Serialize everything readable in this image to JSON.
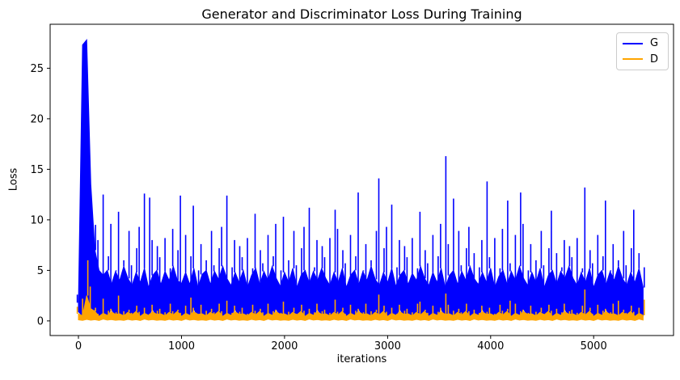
{
  "figure": {
    "background": "#ffffff",
    "text_color": "#000000"
  },
  "chart_data": {
    "type": "line",
    "title": "Generator and Discriminator Loss During Training",
    "xlabel": "iterations",
    "ylabel": "Loss",
    "xlim": [
      -275,
      5775
    ],
    "ylim": [
      -1.45,
      29.35
    ],
    "xticks": [
      0,
      1000,
      2000,
      3000,
      4000,
      5000
    ],
    "yticks": [
      0,
      5,
      10,
      15,
      20,
      25
    ],
    "grid": false,
    "legend": {
      "position": "upper right",
      "entries": [
        {
          "label": "G",
          "color": "#0000ff"
        },
        {
          "label": "D",
          "color": "#ffa500"
        }
      ]
    },
    "representation": "noisy per-iteration loss downsampled to 40-iteration bins; each bin stores spike top (max), top of dense band (body) and minimum (min)",
    "x_start": 0,
    "x_step": 40,
    "x_end": 5480,
    "series": [
      {
        "name": "G",
        "color": "#0000ff",
        "max": [
          2.6,
          27.3,
          27.8,
          14.0,
          9.5,
          8.0,
          12.5,
          6.4,
          9.6,
          5.0,
          10.8,
          6.0,
          8.9,
          5.5,
          7.2,
          9.3,
          12.6,
          12.2,
          8.0,
          7.4,
          6.3,
          8.2,
          5.2,
          9.1,
          7.0,
          12.4,
          8.5,
          6.4,
          11.4,
          5.0,
          7.6,
          6.0,
          8.9,
          5.5,
          7.2,
          9.3,
          12.4,
          5.3,
          8.0,
          7.4,
          6.3,
          8.2,
          5.2,
          10.6,
          7.0,
          5.7,
          8.5,
          6.4,
          9.6,
          5.0,
          10.3,
          6.0,
          8.9,
          5.5,
          7.2,
          9.3,
          11.2,
          5.3,
          8.0,
          7.4,
          6.3,
          8.2,
          11.0,
          9.1,
          7.0,
          5.7,
          8.5,
          6.4,
          12.7,
          5.0,
          7.6,
          6.0,
          8.9,
          14.1,
          7.2,
          9.3,
          11.5,
          5.3,
          8.0,
          7.4,
          6.3,
          8.2,
          5.2,
          10.8,
          7.0,
          5.7,
          8.5,
          6.4,
          9.6,
          16.3,
          7.6,
          12.1,
          8.9,
          5.5,
          7.2,
          9.3,
          6.7,
          5.3,
          8.0,
          13.8,
          6.3,
          8.2,
          5.2,
          9.1,
          11.9,
          5.7,
          8.5,
          12.7,
          9.6,
          5.0,
          7.6,
          6.0,
          8.9,
          5.5,
          7.2,
          10.9,
          6.7,
          5.3,
          8.0,
          7.4,
          6.3,
          8.2,
          5.2,
          13.2,
          7.0,
          5.7,
          8.5,
          6.4,
          11.9,
          5.0,
          7.6,
          6.0,
          8.9,
          5.5,
          7.2,
          11.0,
          6.7,
          5.3
        ],
        "body": [
          1.8,
          27.3,
          27.8,
          13.5,
          7.0,
          5.0,
          4.5,
          5.0,
          3.6,
          4.9,
          4.0,
          5.4,
          4.2,
          3.5,
          4.8,
          3.8,
          5.2,
          3.3,
          4.5,
          5.0,
          3.6,
          4.9,
          4.0,
          5.4,
          4.0,
          3.7,
          4.8,
          3.6,
          5.2,
          3.3,
          4.6,
          5.0,
          3.6,
          4.9,
          4.1,
          5.4,
          4.2,
          3.5,
          4.8,
          3.8,
          5.0,
          3.3,
          4.5,
          5.2,
          3.6,
          4.9,
          4.0,
          5.4,
          4.2,
          3.4,
          4.8,
          3.8,
          5.2,
          3.3,
          4.5,
          5.0,
          3.7,
          4.9,
          4.0,
          5.2,
          4.2,
          3.5,
          4.8,
          3.8,
          5.2,
          3.3,
          4.5,
          5.0,
          3.6,
          4.9,
          4.0,
          5.4,
          4.1,
          3.5,
          4.8,
          3.8,
          5.2,
          3.4,
          4.5,
          5.0,
          3.6,
          4.7,
          4.0,
          5.4,
          4.2,
          3.5,
          4.8,
          3.8,
          5.2,
          3.3,
          4.5,
          5.0,
          3.6,
          4.9,
          4.0,
          5.4,
          4.2,
          3.6,
          4.8,
          3.8,
          5.2,
          3.3,
          4.4,
          5.0,
          3.6,
          4.9,
          4.0,
          5.4,
          4.2,
          3.5,
          4.8,
          3.8,
          5.2,
          3.3,
          4.5,
          5.0,
          3.6,
          4.9,
          4.2,
          5.4,
          4.2,
          3.5,
          4.8,
          3.8,
          5.2,
          3.3,
          4.5,
          5.0,
          3.6,
          4.9,
          4.0,
          5.4,
          4.2,
          3.5,
          4.8,
          3.8,
          5.2,
          3.3
        ],
        "min": [
          0.9,
          0.5,
          1.5,
          1.0,
          1.1,
          0.2,
          0.8,
          0.5,
          1.2,
          0.35,
          0.6,
          0.3,
          0.9,
          0.4,
          1.1,
          0.2,
          0.8,
          0.5,
          1.2,
          0.35,
          0.6,
          0.3,
          0.9,
          0.4,
          1.1,
          0.2,
          0.8,
          0.5,
          1.2,
          0.35,
          0.6,
          0.3,
          0.9,
          0.4,
          1.1,
          0.2,
          0.8,
          0.5,
          1.2,
          0.35,
          0.6,
          0.3,
          0.9,
          0.4,
          1.1,
          0.2,
          0.8,
          0.5,
          1.2,
          0.35,
          0.6,
          0.3,
          0.9,
          0.4,
          1.1,
          0.2,
          0.8,
          0.5,
          1.2,
          0.35,
          0.6,
          0.3,
          0.9,
          0.4,
          1.1,
          0.2,
          0.8,
          0.5,
          1.2,
          0.35,
          0.6,
          0.3,
          0.9,
          0.4,
          1.1,
          0.2,
          0.8,
          0.5,
          1.2,
          0.35,
          0.6,
          0.3,
          0.9,
          0.4,
          1.1,
          0.2,
          0.8,
          0.5,
          1.2,
          0.35,
          0.6,
          0.3,
          0.9,
          0.4,
          1.1,
          0.2,
          0.8,
          0.5,
          1.2,
          0.35,
          0.6,
          0.3,
          0.9,
          0.4,
          1.1,
          0.2,
          0.8,
          0.5,
          1.2,
          0.35,
          0.6,
          0.3,
          0.9,
          0.4,
          1.1,
          0.2,
          0.8,
          0.5,
          1.2,
          0.35,
          0.6,
          0.3,
          0.9,
          0.4,
          1.1,
          0.2,
          0.8,
          0.5,
          1.2,
          0.35,
          0.6,
          0.3,
          0.9,
          0.4,
          1.1,
          0.2,
          0.8,
          0.5
        ],
        "notable_peaks": [
          [
            60,
            27.8
          ],
          [
            125,
            14.0
          ],
          [
            240,
            12.5
          ],
          [
            640,
            12.6
          ],
          [
            1000,
            12.4
          ],
          [
            1440,
            12.4
          ],
          [
            2240,
            11.2
          ],
          [
            2720,
            12.7
          ],
          [
            2920,
            14.1
          ],
          [
            3560,
            16.3
          ],
          [
            3960,
            13.8
          ],
          [
            4280,
            12.7
          ],
          [
            4920,
            13.2
          ],
          [
            5120,
            11.9
          ],
          [
            5400,
            11.0
          ]
        ]
      },
      {
        "name": "D",
        "color": "#ffa500",
        "max": [
          1.4,
          2.2,
          6.0,
          3.4,
          1.3,
          0.7,
          2.2,
          1.0,
          1.2,
          0.85,
          2.5,
          0.95,
          1.1,
          0.8,
          1.5,
          0.9,
          1.3,
          0.7,
          1.6,
          1.0,
          1.2,
          0.85,
          1.7,
          0.95,
          1.1,
          0.8,
          1.5,
          2.3,
          1.3,
          0.7,
          1.6,
          1.0,
          1.2,
          0.85,
          1.7,
          0.95,
          2.0,
          0.8,
          1.5,
          0.9,
          1.3,
          0.7,
          1.6,
          1.0,
          1.2,
          0.85,
          1.7,
          0.95,
          1.1,
          0.8,
          1.9,
          0.9,
          1.3,
          0.7,
          1.6,
          1.0,
          1.2,
          0.85,
          1.7,
          0.95,
          1.1,
          0.8,
          2.1,
          0.9,
          1.3,
          0.7,
          1.6,
          1.0,
          1.2,
          0.85,
          1.7,
          0.95,
          1.1,
          2.6,
          1.5,
          0.9,
          1.3,
          0.7,
          1.6,
          1.0,
          1.2,
          0.85,
          1.7,
          1.9,
          1.1,
          0.8,
          1.5,
          0.9,
          1.3,
          2.7,
          1.6,
          1.0,
          1.2,
          0.85,
          1.7,
          0.95,
          1.1,
          0.8,
          1.5,
          0.9,
          1.3,
          0.7,
          1.6,
          1.0,
          1.2,
          2.0,
          1.7,
          0.95,
          1.1,
          0.8,
          1.5,
          0.9,
          1.3,
          0.7,
          1.6,
          1.0,
          1.2,
          0.85,
          1.7,
          0.95,
          1.1,
          0.8,
          1.5,
          3.1,
          1.3,
          0.7,
          1.6,
          1.0,
          1.2,
          0.85,
          1.7,
          2.0,
          1.1,
          0.8,
          1.5,
          0.9,
          1.3,
          2.1
        ],
        "body": [
          0.7,
          0.5,
          2.5,
          1.2,
          0.95,
          0.45,
          0.75,
          0.55,
          0.9,
          0.65,
          0.7,
          0.5,
          0.85,
          0.6,
          0.95,
          0.45,
          0.75,
          0.55,
          0.9,
          0.65,
          0.7,
          0.5,
          0.85,
          0.6,
          0.95,
          0.45,
          0.75,
          0.55,
          0.9,
          0.65,
          0.7,
          0.5,
          0.85,
          0.6,
          0.95,
          0.45,
          0.75,
          0.55,
          0.9,
          0.65,
          0.7,
          0.5,
          0.85,
          0.6,
          0.95,
          0.45,
          0.75,
          0.55,
          0.9,
          0.65,
          0.7,
          0.5,
          0.85,
          0.6,
          0.95,
          0.45,
          0.75,
          0.55,
          0.9,
          0.65,
          0.7,
          0.5,
          0.85,
          0.6,
          0.95,
          0.45,
          0.75,
          0.55,
          0.9,
          0.65,
          0.7,
          0.5,
          0.85,
          0.6,
          0.95,
          0.45,
          0.75,
          0.55,
          0.9,
          0.65,
          0.7,
          0.5,
          0.85,
          0.6,
          0.95,
          0.45,
          0.75,
          0.55,
          0.9,
          0.65,
          0.7,
          0.5,
          0.85,
          0.6,
          0.95,
          0.45,
          0.75,
          0.55,
          0.9,
          0.65,
          0.7,
          0.5,
          0.85,
          0.6,
          0.95,
          0.45,
          0.75,
          0.55,
          0.9,
          0.65,
          0.7,
          0.5,
          0.85,
          0.6,
          0.95,
          0.45,
          0.75,
          0.55,
          0.9,
          0.65,
          0.7,
          0.5,
          0.85,
          0.6,
          0.95,
          0.45,
          0.75,
          0.55,
          0.9,
          0.65,
          0.7,
          0.5,
          0.85,
          0.6,
          0.95,
          0.45,
          0.75,
          0.55
        ],
        "min": [
          0.1,
          0.05,
          0.15,
          0.07,
          0.12,
          0.04,
          0.18,
          0.08,
          0.13,
          0.06,
          0.1,
          0.05,
          0.15,
          0.07,
          0.12,
          0.04,
          0.18,
          0.08,
          0.13,
          0.06,
          0.1,
          0.05,
          0.15,
          0.07,
          0.12,
          0.04,
          0.18,
          0.08,
          0.13,
          0.06,
          0.1,
          0.05,
          0.15,
          0.07,
          0.12,
          0.04,
          0.18,
          0.08,
          0.13,
          0.06,
          0.1,
          0.05,
          0.15,
          0.07,
          0.12,
          0.04,
          0.18,
          0.08,
          0.13,
          0.06,
          0.1,
          0.05,
          0.15,
          0.07,
          0.12,
          0.04,
          0.18,
          0.08,
          0.13,
          0.06,
          0.1,
          0.05,
          0.15,
          0.07,
          0.12,
          0.04,
          0.18,
          0.08,
          0.13,
          0.06,
          0.1,
          0.05,
          0.15,
          0.07,
          0.12,
          0.04,
          0.18,
          0.08,
          0.13,
          0.06,
          0.1,
          0.05,
          0.15,
          0.07,
          0.12,
          0.04,
          0.18,
          0.08,
          0.13,
          0.06,
          0.1,
          0.05,
          0.15,
          0.07,
          0.12,
          0.04,
          0.18,
          0.08,
          0.13,
          0.06,
          0.1,
          0.05,
          0.15,
          0.07,
          0.12,
          0.04,
          0.18,
          0.08,
          0.13,
          0.06,
          0.1,
          0.05,
          0.15,
          0.07,
          0.12,
          0.04,
          0.18,
          0.08,
          0.13,
          0.06,
          0.1,
          0.05,
          0.15,
          0.07,
          0.12,
          0.04,
          0.18,
          0.08,
          0.13,
          0.06,
          0.1,
          0.05,
          0.15,
          0.07,
          0.12,
          0.04,
          0.18,
          0.08
        ],
        "notable_peaks": [
          [
            80,
            6.0
          ],
          [
            120,
            3.4
          ],
          [
            400,
            2.5
          ],
          [
            1080,
            2.3
          ],
          [
            2920,
            2.6
          ],
          [
            3560,
            2.7
          ],
          [
            4920,
            3.1
          ],
          [
            5480,
            2.1
          ]
        ]
      }
    ]
  }
}
